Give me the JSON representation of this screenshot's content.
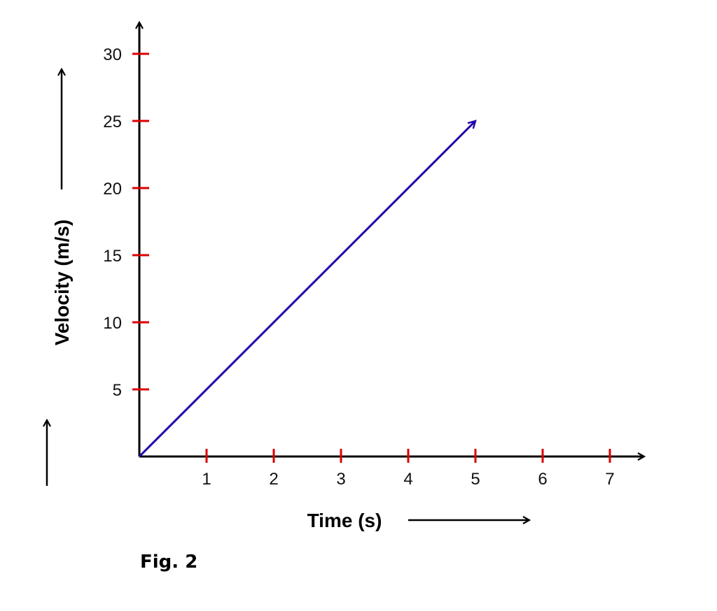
{
  "chart_data": {
    "type": "line",
    "title": "",
    "caption": "Fig. 2",
    "xlabel": "Time (s)",
    "ylabel": "Velocity (m/s)",
    "xlim": [
      0,
      7
    ],
    "ylim": [
      0,
      30
    ],
    "x_ticks": [
      1,
      2,
      3,
      4,
      5,
      6,
      7
    ],
    "y_ticks": [
      5,
      10,
      15,
      20,
      25,
      30
    ],
    "grid": false,
    "series": [
      {
        "x": [
          0,
          5
        ],
        "y": [
          0,
          25
        ]
      }
    ],
    "line_end": "arrow"
  },
  "colors": {
    "axis": "#000000",
    "tick": "#dd0000",
    "series": "#2200aa"
  }
}
